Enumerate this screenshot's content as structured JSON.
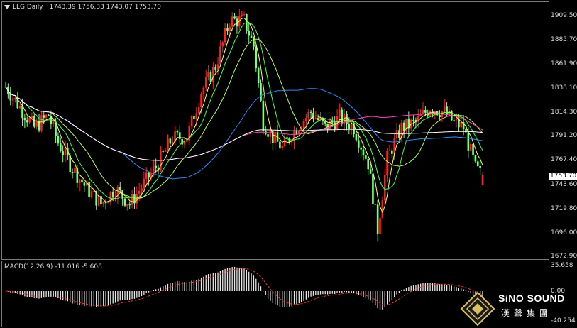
{
  "header": {
    "symbol": "LLG,Daily",
    "ohlc": "1743.39 1756.33 1743.07 1753.70"
  },
  "last_price": "1753.70",
  "price_ticks": [
    "1909.50",
    "1885.70",
    "1861.90",
    "1838.10",
    "1814.30",
    "1791.20",
    "1767.40",
    "1743.60",
    "1719.80",
    "1696.00",
    "1672.90"
  ],
  "macd": {
    "label": "MACD(12,26,9) -11.016 -5.608",
    "ticks": [
      "35.658",
      "0.00",
      "-40.254"
    ]
  },
  "logo": {
    "name": "SiNO SOUND",
    "cn": "漢聲集團"
  },
  "colors": {
    "up": "#ff2020",
    "down": "#7dff7d",
    "ma_white": "#ffffff",
    "ma_yellow": "#ffff60",
    "ma_green": "#4cff4c",
    "ma_blue": "#2a8cff",
    "ma_magenta": "#ff40c0",
    "ma_lime": "#b8ff50",
    "signal": "#ff3030"
  },
  "chart_data": {
    "type": "candlestick",
    "title": "LLG,Daily",
    "ylim": [
      1672.9,
      1921.0
    ],
    "anchors": [
      [
        0,
        1840
      ],
      [
        6,
        1820
      ],
      [
        12,
        1800
      ],
      [
        18,
        1812
      ],
      [
        22,
        1785
      ],
      [
        28,
        1760
      ],
      [
        34,
        1740
      ],
      [
        40,
        1725
      ],
      [
        46,
        1740
      ],
      [
        52,
        1725
      ],
      [
        58,
        1745
      ],
      [
        64,
        1765
      ],
      [
        70,
        1790
      ],
      [
        76,
        1790
      ],
      [
        82,
        1835
      ],
      [
        88,
        1860
      ],
      [
        94,
        1905
      ],
      [
        100,
        1905
      ],
      [
        104,
        1880
      ],
      [
        108,
        1805
      ],
      [
        112,
        1790
      ],
      [
        116,
        1780
      ],
      [
        122,
        1800
      ],
      [
        128,
        1815
      ],
      [
        134,
        1800
      ],
      [
        140,
        1810
      ],
      [
        146,
        1800
      ],
      [
        152,
        1765
      ],
      [
        156,
        1700
      ],
      [
        160,
        1770
      ],
      [
        166,
        1800
      ],
      [
        172,
        1805
      ],
      [
        178,
        1820
      ],
      [
        184,
        1815
      ],
      [
        188,
        1805
      ],
      [
        192,
        1800
      ],
      [
        197,
        1760
      ],
      [
        200,
        1752
      ]
    ],
    "ma_periods": [
      5,
      10,
      20,
      50,
      100,
      200
    ]
  }
}
